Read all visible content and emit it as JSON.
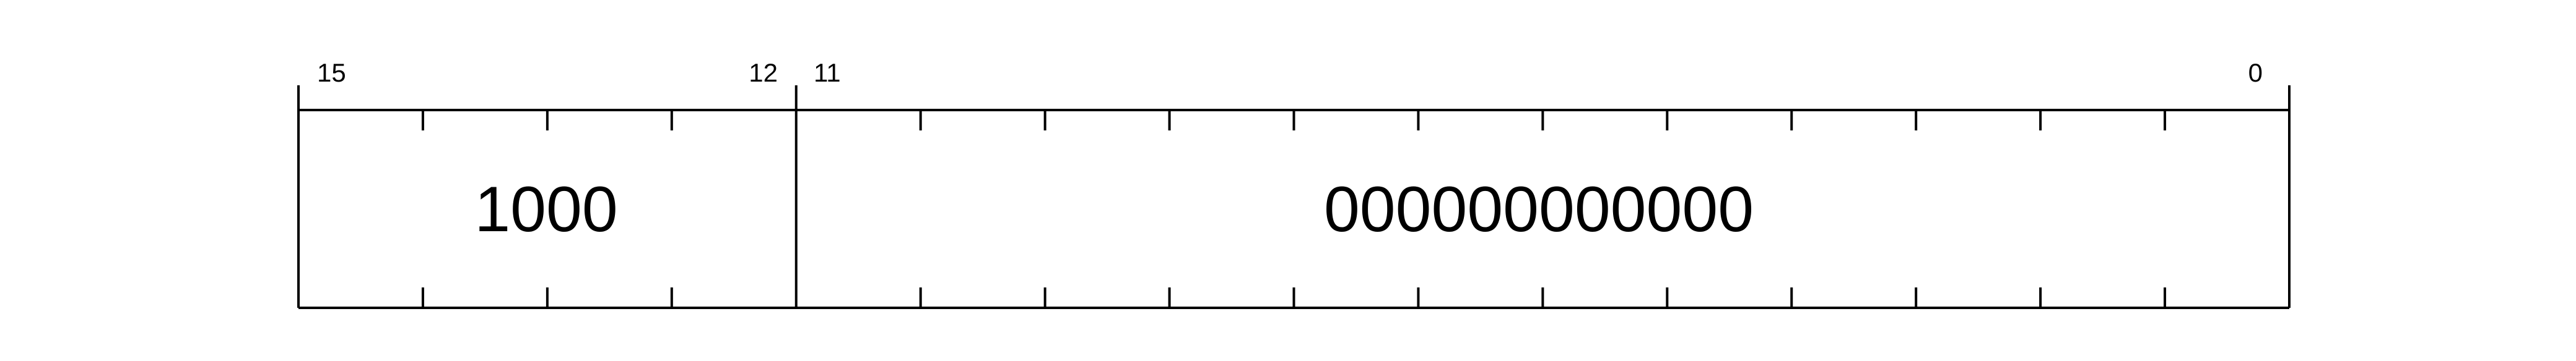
{
  "register": {
    "bit_labels": {
      "msb": "15",
      "field1_lsb": "12",
      "field2_msb": "11",
      "lsb": "0"
    },
    "total_bits": 16,
    "fields": [
      {
        "msb": 15,
        "lsb": 12,
        "value": "1000"
      },
      {
        "msb": 11,
        "lsb": 0,
        "value": "000000000000"
      }
    ]
  }
}
